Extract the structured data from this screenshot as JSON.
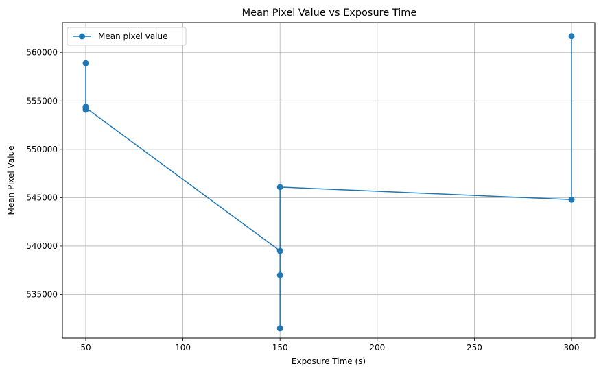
{
  "chart_data": {
    "type": "line",
    "title": "Mean Pixel Value vs Exposure Time",
    "xlabel": "Exposure Time (s)",
    "ylabel": "Mean Pixel Value",
    "xlim": [
      38,
      312
    ],
    "ylim": [
      530500,
      563100
    ],
    "xticks": [
      50,
      100,
      150,
      200,
      250,
      300
    ],
    "yticks": [
      535000,
      540000,
      545000,
      550000,
      555000,
      560000
    ],
    "grid": true,
    "legend_position": "top-left",
    "series": [
      {
        "name": "Mean pixel value",
        "color": "#1f77b4",
        "marker": "circle",
        "x": [
          50,
          50,
          50,
          50,
          150,
          150,
          150,
          150,
          300,
          300
        ],
        "y": [
          558900,
          554400,
          554100,
          554300,
          539500,
          537000,
          531500,
          546100,
          544800,
          561700
        ]
      }
    ]
  }
}
